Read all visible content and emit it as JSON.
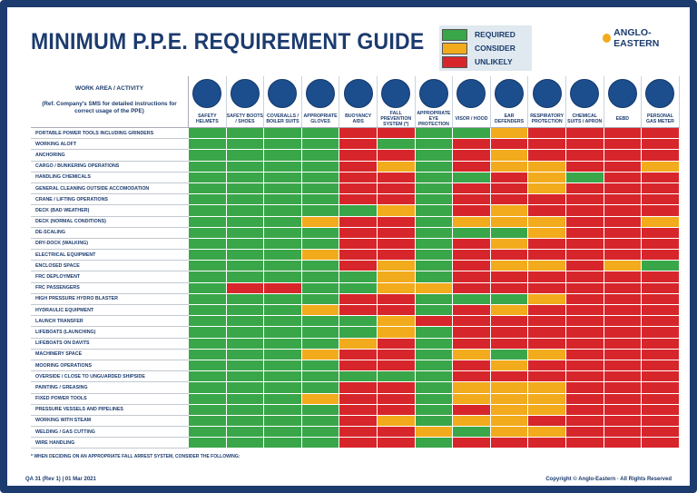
{
  "header": {
    "title": "MINIMUM P.P.E. REQUIREMENT GUIDE",
    "logo": "ANGLO-EASTERN"
  },
  "legend": [
    {
      "label": "REQUIRED",
      "color": "#3aa64a"
    },
    {
      "label": "CONSIDER",
      "color": "#f2ab1c"
    },
    {
      "label": "UNLIKELY",
      "color": "#d7262b"
    }
  ],
  "table": {
    "corner_title": "WORK AREA / ACTIVITY",
    "corner_note": "(Ref. Company's SMS for detailed instructions for correct usage of the PPE)",
    "columns": [
      "SAFETY HELMETS",
      "SAFETY BOOTS / SHOES",
      "COVERALLS / BOILER SUITS",
      "APPROPRIATE GLOVES",
      "BUOYANCY AIDS",
      "FALL PREVENTION SYSTEM (*)",
      "APPROPRIATE EYE PROTECTION",
      "VISOR / HOOD",
      "EAR DEFENDERS",
      "RESPIRATORY PROTECTION",
      "CHEMICAL SUITS / APRON",
      "EEBD",
      "PERSONAL GAS METER"
    ],
    "rows": [
      {
        "activity": "PORTABLE POWER TOOLS INCLUDING GRINDERS",
        "cells": [
          "REQUIRED",
          "REQUIRED",
          "REQUIRED",
          "REQUIRED",
          "UNLIKELY",
          "UNLIKELY",
          "REQUIRED",
          "REQUIRED",
          "CONSIDER",
          "UNLIKELY",
          "UNLIKELY",
          "UNLIKELY",
          "UNLIKELY"
        ]
      },
      {
        "activity": "WORKING ALOFT",
        "cells": [
          "REQUIRED",
          "REQUIRED",
          "REQUIRED",
          "REQUIRED",
          "UNLIKELY",
          "REQUIRED",
          "REQUIRED",
          "UNLIKELY",
          "UNLIKELY",
          "UNLIKELY",
          "UNLIKELY",
          "UNLIKELY",
          "UNLIKELY"
        ]
      },
      {
        "activity": "ANCHORING",
        "cells": [
          "REQUIRED",
          "REQUIRED",
          "REQUIRED",
          "REQUIRED",
          "UNLIKELY",
          "UNLIKELY",
          "REQUIRED",
          "UNLIKELY",
          "CONSIDER",
          "UNLIKELY",
          "UNLIKELY",
          "UNLIKELY",
          "UNLIKELY"
        ]
      },
      {
        "activity": "CARGO / BUNKERING OPERATIONS",
        "cells": [
          "REQUIRED",
          "REQUIRED",
          "REQUIRED",
          "REQUIRED",
          "UNLIKELY",
          "CONSIDER",
          "REQUIRED",
          "UNLIKELY",
          "CONSIDER",
          "CONSIDER",
          "UNLIKELY",
          "UNLIKELY",
          "CONSIDER"
        ]
      },
      {
        "activity": "HANDLING CHEMICALS",
        "cells": [
          "REQUIRED",
          "REQUIRED",
          "REQUIRED",
          "REQUIRED",
          "UNLIKELY",
          "UNLIKELY",
          "REQUIRED",
          "REQUIRED",
          "UNLIKELY",
          "CONSIDER",
          "REQUIRED",
          "UNLIKELY",
          "UNLIKELY"
        ]
      },
      {
        "activity": "GENERAL CLEANING OUTSIDE ACCOMODATION",
        "cells": [
          "REQUIRED",
          "REQUIRED",
          "REQUIRED",
          "REQUIRED",
          "UNLIKELY",
          "UNLIKELY",
          "REQUIRED",
          "UNLIKELY",
          "UNLIKELY",
          "CONSIDER",
          "UNLIKELY",
          "UNLIKELY",
          "UNLIKELY"
        ]
      },
      {
        "activity": "CRANE / LIFTING OPERATIONS",
        "cells": [
          "REQUIRED",
          "REQUIRED",
          "REQUIRED",
          "REQUIRED",
          "UNLIKELY",
          "UNLIKELY",
          "REQUIRED",
          "UNLIKELY",
          "UNLIKELY",
          "UNLIKELY",
          "UNLIKELY",
          "UNLIKELY",
          "UNLIKELY"
        ]
      },
      {
        "activity": "DECK (BAD WEATHER)",
        "cells": [
          "REQUIRED",
          "REQUIRED",
          "REQUIRED",
          "REQUIRED",
          "REQUIRED",
          "CONSIDER",
          "REQUIRED",
          "UNLIKELY",
          "CONSIDER",
          "UNLIKELY",
          "UNLIKELY",
          "UNLIKELY",
          "UNLIKELY"
        ]
      },
      {
        "activity": "DECK (NORMAL CONDITIONS)",
        "cells": [
          "REQUIRED",
          "REQUIRED",
          "REQUIRED",
          "CONSIDER",
          "UNLIKELY",
          "UNLIKELY",
          "REQUIRED",
          "CONSIDER",
          "CONSIDER",
          "CONSIDER",
          "UNLIKELY",
          "UNLIKELY",
          "CONSIDER"
        ]
      },
      {
        "activity": "DE-SCALING",
        "cells": [
          "REQUIRED",
          "REQUIRED",
          "REQUIRED",
          "REQUIRED",
          "UNLIKELY",
          "UNLIKELY",
          "REQUIRED",
          "REQUIRED",
          "REQUIRED",
          "CONSIDER",
          "UNLIKELY",
          "UNLIKELY",
          "UNLIKELY"
        ]
      },
      {
        "activity": "DRY-DOCK (WALKING)",
        "cells": [
          "REQUIRED",
          "REQUIRED",
          "REQUIRED",
          "REQUIRED",
          "UNLIKELY",
          "UNLIKELY",
          "REQUIRED",
          "UNLIKELY",
          "CONSIDER",
          "UNLIKELY",
          "UNLIKELY",
          "UNLIKELY",
          "UNLIKELY"
        ]
      },
      {
        "activity": "ELECTRICAL EQUIPMENT",
        "cells": [
          "REQUIRED",
          "REQUIRED",
          "REQUIRED",
          "CONSIDER",
          "UNLIKELY",
          "UNLIKELY",
          "REQUIRED",
          "UNLIKELY",
          "UNLIKELY",
          "UNLIKELY",
          "UNLIKELY",
          "UNLIKELY",
          "UNLIKELY"
        ]
      },
      {
        "activity": "ENCLOSED SPACE",
        "cells": [
          "REQUIRED",
          "REQUIRED",
          "REQUIRED",
          "REQUIRED",
          "UNLIKELY",
          "CONSIDER",
          "REQUIRED",
          "UNLIKELY",
          "CONSIDER",
          "CONSIDER",
          "UNLIKELY",
          "CONSIDER",
          "REQUIRED"
        ]
      },
      {
        "activity": "FRC DEPLOYMENT",
        "cells": [
          "REQUIRED",
          "REQUIRED",
          "REQUIRED",
          "REQUIRED",
          "REQUIRED",
          "CONSIDER",
          "REQUIRED",
          "UNLIKELY",
          "UNLIKELY",
          "UNLIKELY",
          "UNLIKELY",
          "UNLIKELY",
          "UNLIKELY"
        ]
      },
      {
        "activity": "FRC PASSENGERS",
        "cells": [
          "REQUIRED",
          "UNLIKELY",
          "UNLIKELY",
          "REQUIRED",
          "REQUIRED",
          "CONSIDER",
          "CONSIDER",
          "UNLIKELY",
          "UNLIKELY",
          "UNLIKELY",
          "UNLIKELY",
          "UNLIKELY",
          "UNLIKELY"
        ]
      },
      {
        "activity": "HIGH PRESSURE HYDRO BLASTER",
        "cells": [
          "REQUIRED",
          "REQUIRED",
          "REQUIRED",
          "REQUIRED",
          "UNLIKELY",
          "UNLIKELY",
          "REQUIRED",
          "REQUIRED",
          "REQUIRED",
          "CONSIDER",
          "UNLIKELY",
          "UNLIKELY",
          "UNLIKELY"
        ]
      },
      {
        "activity": "HYDRAULIC EQUIPMENT",
        "cells": [
          "REQUIRED",
          "REQUIRED",
          "REQUIRED",
          "CONSIDER",
          "UNLIKELY",
          "UNLIKELY",
          "REQUIRED",
          "UNLIKELY",
          "CONSIDER",
          "UNLIKELY",
          "UNLIKELY",
          "UNLIKELY",
          "UNLIKELY"
        ]
      },
      {
        "activity": "LAUNCH TRANSFER",
        "cells": [
          "REQUIRED",
          "REQUIRED",
          "REQUIRED",
          "REQUIRED",
          "REQUIRED",
          "CONSIDER",
          "UNLIKELY",
          "UNLIKELY",
          "UNLIKELY",
          "UNLIKELY",
          "UNLIKELY",
          "UNLIKELY",
          "UNLIKELY"
        ]
      },
      {
        "activity": "LIFEBOATS (LAUNCHING)",
        "cells": [
          "REQUIRED",
          "REQUIRED",
          "REQUIRED",
          "REQUIRED",
          "REQUIRED",
          "CONSIDER",
          "REQUIRED",
          "UNLIKELY",
          "UNLIKELY",
          "UNLIKELY",
          "UNLIKELY",
          "UNLIKELY",
          "UNLIKELY"
        ]
      },
      {
        "activity": "LIFEBOATS ON DAVITS",
        "cells": [
          "REQUIRED",
          "REQUIRED",
          "REQUIRED",
          "REQUIRED",
          "CONSIDER",
          "UNLIKELY",
          "REQUIRED",
          "UNLIKELY",
          "UNLIKELY",
          "UNLIKELY",
          "UNLIKELY",
          "UNLIKELY",
          "UNLIKELY"
        ]
      },
      {
        "activity": "MACHINERY SPACE",
        "cells": [
          "REQUIRED",
          "REQUIRED",
          "REQUIRED",
          "CONSIDER",
          "UNLIKELY",
          "UNLIKELY",
          "REQUIRED",
          "CONSIDER",
          "REQUIRED",
          "CONSIDER",
          "UNLIKELY",
          "UNLIKELY",
          "UNLIKELY"
        ]
      },
      {
        "activity": "MOORING OPERATIONS",
        "cells": [
          "REQUIRED",
          "REQUIRED",
          "REQUIRED",
          "REQUIRED",
          "UNLIKELY",
          "UNLIKELY",
          "REQUIRED",
          "UNLIKELY",
          "CONSIDER",
          "UNLIKELY",
          "UNLIKELY",
          "UNLIKELY",
          "UNLIKELY"
        ]
      },
      {
        "activity": "OVERSIDE / CLOSE TO UNGUARDED SHIPSIDE",
        "cells": [
          "REQUIRED",
          "REQUIRED",
          "REQUIRED",
          "REQUIRED",
          "REQUIRED",
          "REQUIRED",
          "REQUIRED",
          "UNLIKELY",
          "UNLIKELY",
          "UNLIKELY",
          "UNLIKELY",
          "UNLIKELY",
          "UNLIKELY"
        ]
      },
      {
        "activity": "PAINTING / GREASING",
        "cells": [
          "REQUIRED",
          "REQUIRED",
          "REQUIRED",
          "REQUIRED",
          "UNLIKELY",
          "UNLIKELY",
          "REQUIRED",
          "CONSIDER",
          "CONSIDER",
          "CONSIDER",
          "UNLIKELY",
          "UNLIKELY",
          "UNLIKELY"
        ]
      },
      {
        "activity": "FIXED POWER TOOLS",
        "cells": [
          "REQUIRED",
          "REQUIRED",
          "REQUIRED",
          "CONSIDER",
          "UNLIKELY",
          "UNLIKELY",
          "REQUIRED",
          "CONSIDER",
          "CONSIDER",
          "CONSIDER",
          "UNLIKELY",
          "UNLIKELY",
          "UNLIKELY"
        ]
      },
      {
        "activity": "PRESSURE VESSELS AND PIPELINES",
        "cells": [
          "REQUIRED",
          "REQUIRED",
          "REQUIRED",
          "REQUIRED",
          "UNLIKELY",
          "UNLIKELY",
          "REQUIRED",
          "UNLIKELY",
          "CONSIDER",
          "CONSIDER",
          "UNLIKELY",
          "UNLIKELY",
          "UNLIKELY"
        ]
      },
      {
        "activity": "WORKING WITH STEAM",
        "cells": [
          "REQUIRED",
          "REQUIRED",
          "REQUIRED",
          "REQUIRED",
          "UNLIKELY",
          "CONSIDER",
          "REQUIRED",
          "CONSIDER",
          "CONSIDER",
          "UNLIKELY",
          "UNLIKELY",
          "UNLIKELY",
          "UNLIKELY"
        ]
      },
      {
        "activity": "WELDING / GAS CUTTING",
        "cells": [
          "REQUIRED",
          "REQUIRED",
          "REQUIRED",
          "REQUIRED",
          "UNLIKELY",
          "UNLIKELY",
          "CONSIDER",
          "REQUIRED",
          "CONSIDER",
          "CONSIDER",
          "UNLIKELY",
          "UNLIKELY",
          "UNLIKELY"
        ]
      },
      {
        "activity": "WIRE HANDLING",
        "cells": [
          "REQUIRED",
          "REQUIRED",
          "REQUIRED",
          "REQUIRED",
          "UNLIKELY",
          "UNLIKELY",
          "REQUIRED",
          "UNLIKELY",
          "UNLIKELY",
          "UNLIKELY",
          "UNLIKELY",
          "UNLIKELY",
          "UNLIKELY"
        ]
      }
    ]
  },
  "footer": {
    "note": "* WHEN DECIDING ON AN APPROPRIATE FALL ARREST SYSTEM, CONSIDER THE FOLLOWING:",
    "reference": "QA 31 (Rev 1)  |  01 Mar 2021",
    "copyright": "Copyright © Anglo-Eastern · All Rights Reserved"
  }
}
